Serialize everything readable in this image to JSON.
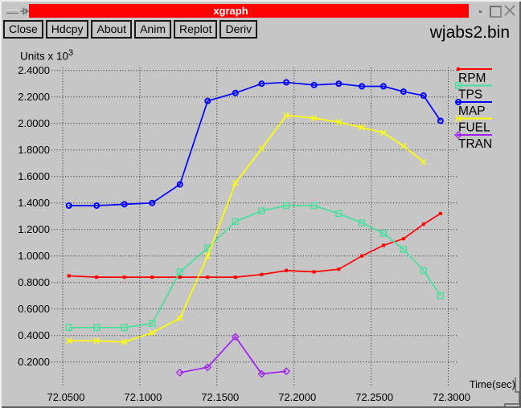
{
  "window": {
    "title": "xgraph",
    "titlebar_color": "#ff0000",
    "background_color": "#c6c6c6"
  },
  "toolbar": {
    "buttons": [
      "Close",
      "Hdcpy",
      "About",
      "Anim",
      "Replot",
      "Deriv"
    ]
  },
  "dataset_title": "wjabs2.bin",
  "chart_data": {
    "type": "line",
    "title": "wjabs2.bin",
    "y_axis_label": "Units x 10",
    "y_axis_exponent": "3",
    "x_axis_label": "Time(sec)",
    "xlim": [
      72.05,
      72.3
    ],
    "ylim": [
      0.2,
      2.4
    ],
    "grid": true,
    "grid_style": "dotted",
    "legend_position": "right",
    "x_ticks": [
      {
        "value": 72.05,
        "label": "72.0500"
      },
      {
        "value": 72.1,
        "label": "72.1000"
      },
      {
        "value": 72.15,
        "label": "72.1500"
      },
      {
        "value": 72.2,
        "label": "72.2000"
      },
      {
        "value": 72.25,
        "label": "72.2500"
      },
      {
        "value": 72.3,
        "label": "72.3000"
      }
    ],
    "y_ticks": [
      {
        "value": 2.4,
        "label": "2.4000"
      },
      {
        "value": 2.2,
        "label": "2.2000"
      },
      {
        "value": 2.0,
        "label": "2.0000"
      },
      {
        "value": 1.8,
        "label": "1.8000"
      },
      {
        "value": 1.6,
        "label": "1.6000"
      },
      {
        "value": 1.4,
        "label": "1.4000"
      },
      {
        "value": 1.2,
        "label": "1.2000"
      },
      {
        "value": 1.0,
        "label": "1.0000"
      },
      {
        "value": 0.8,
        "label": "0.8000"
      },
      {
        "value": 0.6,
        "label": "0.6000"
      },
      {
        "value": 0.4,
        "label": "0.4000"
      },
      {
        "value": 0.2,
        "label": "0.2000"
      }
    ],
    "series": [
      {
        "name": "RPM",
        "color": "#ff0000",
        "marker": "square-filled",
        "x": [
          72.054,
          72.072,
          72.09,
          72.108,
          72.126,
          72.144,
          72.162,
          72.179,
          72.195,
          72.213,
          72.229,
          72.244,
          72.258,
          72.271,
          72.284,
          72.295
        ],
        "values": [
          0.85,
          0.84,
          0.84,
          0.84,
          0.84,
          0.84,
          0.84,
          0.86,
          0.89,
          0.88,
          0.9,
          1.0,
          1.08,
          1.13,
          1.24,
          1.32
        ]
      },
      {
        "name": "TPS",
        "color": "#45e09c",
        "marker": "square-open",
        "x": [
          72.054,
          72.072,
          72.09,
          72.108,
          72.126,
          72.144,
          72.162,
          72.179,
          72.195,
          72.213,
          72.229,
          72.244,
          72.258,
          72.271,
          72.284,
          72.295
        ],
        "values": [
          0.46,
          0.46,
          0.46,
          0.49,
          0.88,
          1.06,
          1.26,
          1.34,
          1.38,
          1.38,
          1.32,
          1.25,
          1.17,
          1.05,
          0.89,
          0.7
        ]
      },
      {
        "name": "MAP",
        "color": "#0000ff",
        "marker": "circle-open",
        "x": [
          72.054,
          72.072,
          72.09,
          72.108,
          72.126,
          72.144,
          72.162,
          72.179,
          72.195,
          72.213,
          72.229,
          72.244,
          72.258,
          72.271,
          72.284,
          72.295
        ],
        "values": [
          1.38,
          1.38,
          1.39,
          1.4,
          1.54,
          2.17,
          2.23,
          2.3,
          2.31,
          2.29,
          2.3,
          2.28,
          2.28,
          2.24,
          2.21,
          2.02
        ]
      },
      {
        "name": "FUEL",
        "color": "#ffff00",
        "marker": "x-cross",
        "x": [
          72.054,
          72.072,
          72.09,
          72.108,
          72.126,
          72.144,
          72.162,
          72.179,
          72.195,
          72.213,
          72.229,
          72.244,
          72.258,
          72.271,
          72.284
        ],
        "values": [
          0.36,
          0.36,
          0.35,
          0.42,
          0.53,
          1.0,
          1.55,
          1.81,
          2.06,
          2.04,
          2.01,
          1.97,
          1.93,
          1.83,
          1.71
        ]
      },
      {
        "name": "TRAN",
        "color": "#a020f0",
        "marker": "diamond-open",
        "x": [
          72.126,
          72.144,
          72.162,
          72.179,
          72.195
        ],
        "values": [
          0.12,
          0.16,
          0.39,
          0.11,
          0.13
        ]
      }
    ]
  }
}
